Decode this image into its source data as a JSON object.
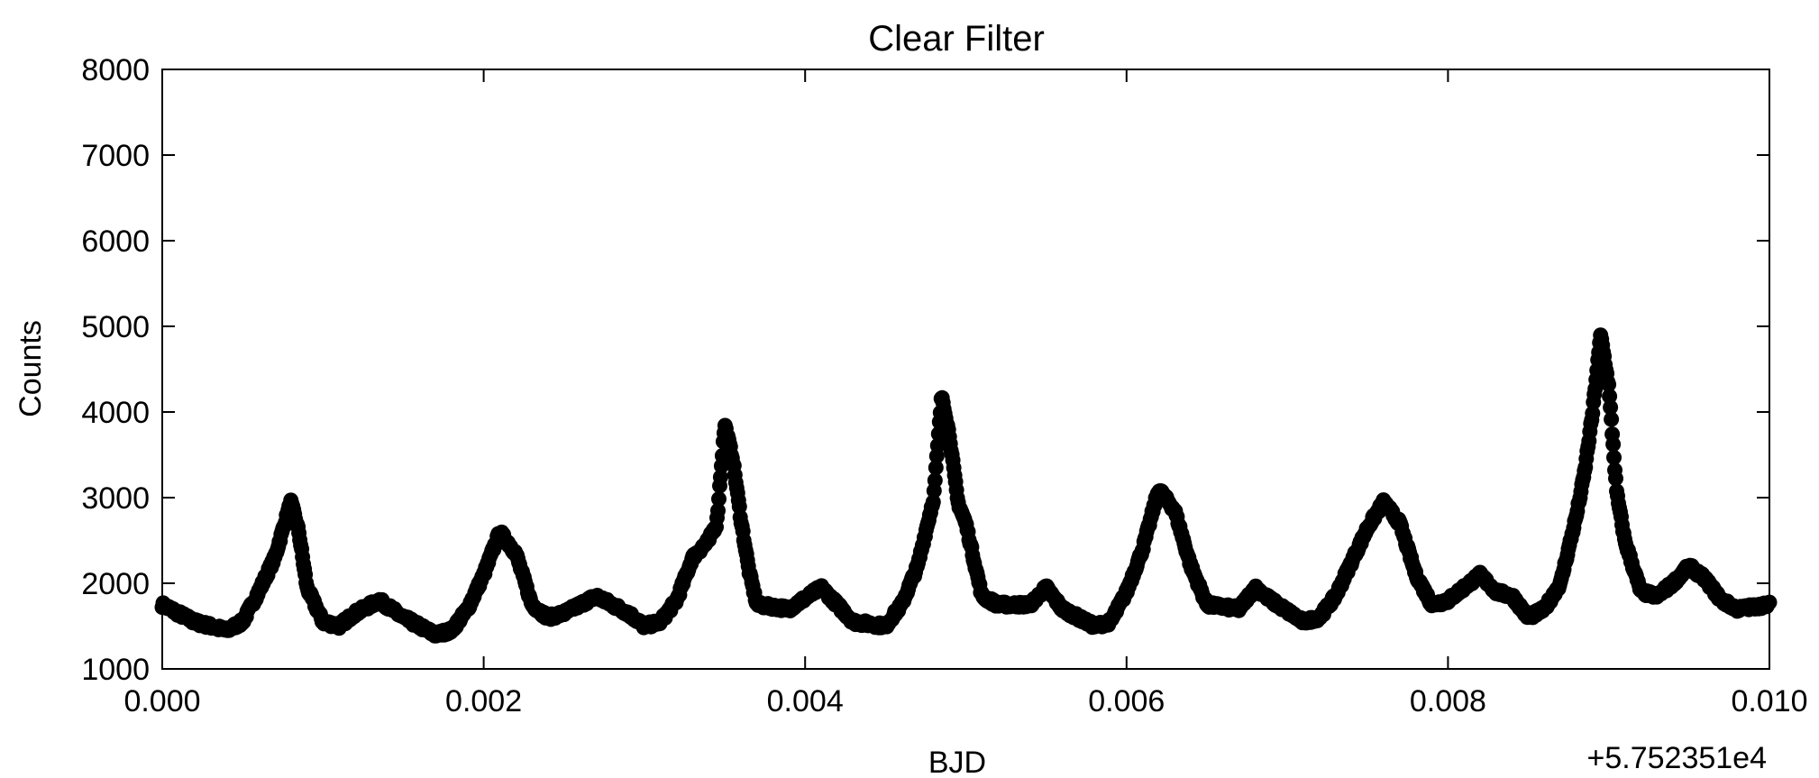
{
  "chart_data": {
    "type": "scatter",
    "title": "Clear Filter",
    "xlabel": "BJD",
    "ylabel": "Counts",
    "x_offset_label": "+5.752351e4",
    "xlim": [
      0.0,
      0.01
    ],
    "ylim": [
      1000,
      8000
    ],
    "x_ticks": [
      "0.000",
      "0.002",
      "0.004",
      "0.006",
      "0.008",
      "0.010"
    ],
    "y_ticks": [
      "1000",
      "2000",
      "3000",
      "4000",
      "5000",
      "6000",
      "7000",
      "8000"
    ],
    "grid": false,
    "legend": "none",
    "marker_color": "#000000",
    "profile": [
      [
        0.0,
        1750
      ],
      [
        0.0002,
        1550
      ],
      [
        0.0004,
        1450
      ],
      [
        0.0005,
        1550
      ],
      [
        0.0006,
        1900
      ],
      [
        0.0007,
        2300
      ],
      [
        0.0008,
        2950
      ],
      [
        0.00085,
        2600
      ],
      [
        0.0009,
        1950
      ],
      [
        0.001,
        1550
      ],
      [
        0.0011,
        1500
      ],
      [
        0.0012,
        1650
      ],
      [
        0.00135,
        1800
      ],
      [
        0.0015,
        1600
      ],
      [
        0.0017,
        1400
      ],
      [
        0.0018,
        1450
      ],
      [
        0.0019,
        1700
      ],
      [
        0.002,
        2100
      ],
      [
        0.0021,
        2600
      ],
      [
        0.0022,
        2350
      ],
      [
        0.0023,
        1750
      ],
      [
        0.0024,
        1600
      ],
      [
        0.0025,
        1650
      ],
      [
        0.0027,
        1850
      ],
      [
        0.0029,
        1650
      ],
      [
        0.003,
        1500
      ],
      [
        0.0031,
        1550
      ],
      [
        0.0032,
        1800
      ],
      [
        0.0033,
        2300
      ],
      [
        0.0034,
        2500
      ],
      [
        0.00345,
        2700
      ],
      [
        0.0035,
        3850
      ],
      [
        0.00355,
        3450
      ],
      [
        0.0036,
        2750
      ],
      [
        0.00365,
        2150
      ],
      [
        0.0037,
        1750
      ],
      [
        0.0039,
        1700
      ],
      [
        0.0041,
        1950
      ],
      [
        0.0042,
        1750
      ],
      [
        0.0043,
        1550
      ],
      [
        0.0045,
        1500
      ],
      [
        0.0046,
        1750
      ],
      [
        0.0047,
        2200
      ],
      [
        0.0048,
        3000
      ],
      [
        0.00485,
        4200
      ],
      [
        0.0049,
        3700
      ],
      [
        0.00495,
        2950
      ],
      [
        0.005,
        2700
      ],
      [
        0.0051,
        1850
      ],
      [
        0.0052,
        1750
      ],
      [
        0.0054,
        1750
      ],
      [
        0.0055,
        1950
      ],
      [
        0.0056,
        1700
      ],
      [
        0.0058,
        1500
      ],
      [
        0.0059,
        1550
      ],
      [
        0.006,
        1900
      ],
      [
        0.0061,
        2400
      ],
      [
        0.0062,
        3100
      ],
      [
        0.0063,
        2850
      ],
      [
        0.0064,
        2200
      ],
      [
        0.0065,
        1750
      ],
      [
        0.0067,
        1700
      ],
      [
        0.0068,
        1950
      ],
      [
        0.0069,
        1800
      ],
      [
        0.0071,
        1550
      ],
      [
        0.0072,
        1600
      ],
      [
        0.0073,
        1850
      ],
      [
        0.0074,
        2250
      ],
      [
        0.0075,
        2650
      ],
      [
        0.0076,
        2950
      ],
      [
        0.0077,
        2700
      ],
      [
        0.0078,
        2100
      ],
      [
        0.0079,
        1750
      ],
      [
        0.008,
        1800
      ],
      [
        0.0082,
        2100
      ],
      [
        0.0083,
        1900
      ],
      [
        0.0084,
        1850
      ],
      [
        0.0085,
        1600
      ],
      [
        0.0086,
        1700
      ],
      [
        0.0087,
        2000
      ],
      [
        0.0088,
        2800
      ],
      [
        0.00885,
        3300
      ],
      [
        0.0089,
        4000
      ],
      [
        0.00895,
        4900
      ],
      [
        0.009,
        4300
      ],
      [
        0.00905,
        3050
      ],
      [
        0.0091,
        2500
      ],
      [
        0.0092,
        1900
      ],
      [
        0.0093,
        1850
      ],
      [
        0.0094,
        2000
      ],
      [
        0.0095,
        2200
      ],
      [
        0.0096,
        2050
      ],
      [
        0.0097,
        1800
      ],
      [
        0.0098,
        1700
      ],
      [
        0.01,
        1750
      ]
    ]
  }
}
